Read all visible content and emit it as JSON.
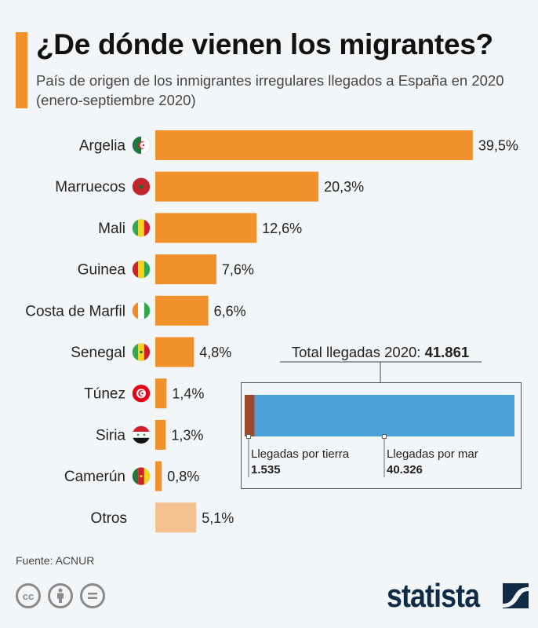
{
  "title": "¿De dónde vienen los migrantes?",
  "subtitle": "País de origen de los inmigrantes irregulares llegados a España en 2020 (enero-septiembre 2020)",
  "source": "Fuente: ACNUR",
  "brand": "statista",
  "colors": {
    "accent": "#f0912b",
    "bar": "#f0912b",
    "bar_other": "#f4c18f",
    "land": "#9b4a2e",
    "sea": "#4ba2d9",
    "background": "#f3f6f9",
    "brand": "#0f2b46"
  },
  "license_icons": [
    "cc-icon",
    "by-attribution-icon",
    "no-derivatives-icon"
  ],
  "chart_data": {
    "type": "bar",
    "orientation": "horizontal",
    "title": "¿De dónde vienen los migrantes?",
    "subtitle": "País de origen de los inmigrantes irregulares llegados a España en 2020 (enero-septiembre 2020)",
    "unit": "%",
    "categories": [
      "Argelia",
      "Marruecos",
      "Mali",
      "Guinea",
      "Costa de Marfil",
      "Senegal",
      "Túnez",
      "Siria",
      "Camerún",
      "Otros"
    ],
    "values": [
      39.5,
      20.3,
      12.6,
      7.6,
      6.6,
      4.8,
      1.4,
      1.3,
      0.8,
      5.1
    ],
    "labels": [
      "39,5%",
      "20,3%",
      "12,6%",
      "7,6%",
      "6,6%",
      "4,8%",
      "1,4%",
      "1,3%",
      "0,8%",
      "5,1%"
    ],
    "flags": [
      "algeria-flag-icon",
      "morocco-flag-icon",
      "mali-flag-icon",
      "guinea-flag-icon",
      "ivory-coast-flag-icon",
      "senegal-flag-icon",
      "tunisia-flag-icon",
      "syria-flag-icon",
      "cameroon-flag-icon",
      null
    ],
    "highlight_last_as_other": true,
    "xlim": [
      0,
      40
    ],
    "grid": false,
    "inset": {
      "type": "stacked-bar",
      "title_prefix": "Total llegadas 2020: ",
      "total_label": "41.861",
      "total": 41861,
      "segments": [
        {
          "name": "Llegadas por tierra",
          "value": 1535,
          "label": "1.535"
        },
        {
          "name": "Llegadas por mar",
          "value": 40326,
          "label": "40.326"
        }
      ]
    }
  }
}
